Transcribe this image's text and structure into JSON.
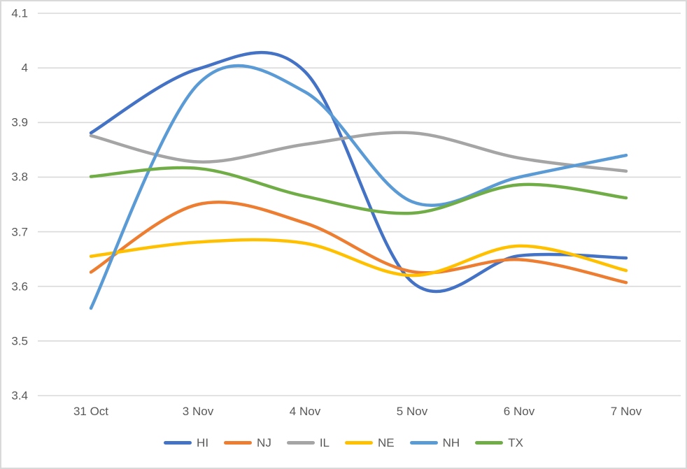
{
  "chart_data": {
    "type": "line",
    "smooth": true,
    "grid": true,
    "legend_position": "bottom",
    "title": "",
    "xlabel": "",
    "ylabel": "",
    "categories": [
      "31 Oct",
      "3 Nov",
      "4 Nov",
      "5 Nov",
      "6 Nov",
      "7 Nov"
    ],
    "ylim": [
      3.4,
      4.1
    ],
    "y_ticks": [
      "4.1",
      "4",
      "3.9",
      "3.8",
      "3.7",
      "3.6",
      "3.5",
      "3.4"
    ],
    "y_tick_values": [
      4.1,
      4.0,
      3.9,
      3.8,
      3.7,
      3.6,
      3.5,
      3.4
    ],
    "series": [
      {
        "name": "HI",
        "color": "#4472C4",
        "values": [
          3.881,
          3.998,
          3.993,
          3.608,
          3.656,
          3.652
        ]
      },
      {
        "name": "NJ",
        "color": "#ED7D31",
        "values": [
          3.626,
          3.75,
          3.716,
          3.627,
          3.649,
          3.607
        ]
      },
      {
        "name": "IL",
        "color": "#A5A5A5",
        "values": [
          3.876,
          3.828,
          3.86,
          3.881,
          3.835,
          3.811
        ]
      },
      {
        "name": "NE",
        "color": "#FFC000",
        "values": [
          3.655,
          3.681,
          3.679,
          3.62,
          3.674,
          3.629
        ]
      },
      {
        "name": "NH",
        "color": "#5B9BD5",
        "values": [
          3.56,
          3.97,
          3.956,
          3.755,
          3.8,
          3.84
        ]
      },
      {
        "name": "TX",
        "color": "#70AD47",
        "values": [
          3.801,
          3.816,
          3.765,
          3.734,
          3.786,
          3.762
        ]
      }
    ]
  },
  "style": {
    "background": "#FFFFFF",
    "border_color": "#D9D9D9",
    "gridline_color": "#D9D9D9",
    "axis_text_color": "#595959"
  }
}
